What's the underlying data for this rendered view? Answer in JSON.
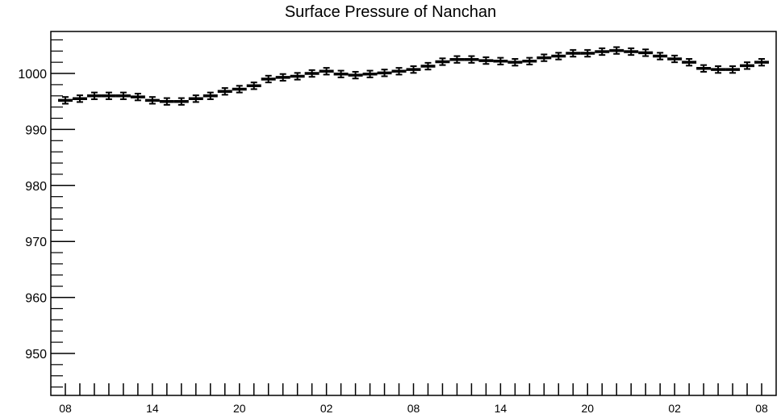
{
  "chart_data": {
    "type": "scatter",
    "title": "Surface Pressure of Nanchan",
    "xlabel": "",
    "ylabel": "",
    "x_tick_labels": [
      "08",
      "14",
      "20",
      "02",
      "08",
      "14",
      "20",
      "02",
      "08"
    ],
    "x_tick_hours": [
      0,
      6,
      12,
      18,
      24,
      30,
      36,
      42,
      48
    ],
    "xlim": [
      -1,
      49
    ],
    "ylim": [
      942.5,
      1007.5
    ],
    "y_ticks": [
      950,
      960,
      970,
      980,
      990,
      1000
    ],
    "grid": false,
    "series": [
      {
        "x": [
          0,
          1,
          2,
          3,
          4,
          5,
          6,
          7,
          8,
          9,
          10,
          11,
          12,
          13,
          14,
          15,
          16,
          17,
          18,
          19,
          20,
          21,
          22,
          23,
          24,
          25,
          26,
          27,
          28,
          29,
          30,
          31,
          32,
          33,
          34,
          35,
          36,
          37,
          38,
          39,
          40,
          41,
          42,
          43,
          44,
          45,
          46,
          47,
          48
        ],
        "y": [
          995.2,
          995.5,
          996.0,
          996.0,
          996.0,
          995.8,
          995.2,
          995.0,
          995.0,
          995.5,
          996.0,
          996.8,
          997.2,
          997.8,
          999.0,
          999.3,
          999.5,
          1000.0,
          1000.4,
          999.9,
          999.7,
          999.9,
          1000.1,
          1000.4,
          1000.7,
          1001.3,
          1002.1,
          1002.5,
          1002.5,
          1002.3,
          1002.2,
          1002.0,
          1002.2,
          1002.8,
          1003.1,
          1003.6,
          1003.6,
          1003.9,
          1004.1,
          1003.9,
          1003.7,
          1003.1,
          1002.6,
          1002.0,
          1000.9,
          1000.7,
          1000.7,
          1001.4,
          1002.0
        ],
        "err": [
          0.6,
          0.6,
          0.6,
          0.6,
          0.6,
          0.6,
          0.6,
          0.6,
          0.6,
          0.6,
          0.6,
          0.6,
          0.6,
          0.6,
          0.6,
          0.6,
          0.6,
          0.6,
          0.6,
          0.6,
          0.6,
          0.6,
          0.6,
          0.6,
          0.6,
          0.6,
          0.6,
          0.6,
          0.6,
          0.6,
          0.6,
          0.6,
          0.6,
          0.6,
          0.6,
          0.6,
          0.6,
          0.6,
          0.6,
          0.6,
          0.6,
          0.6,
          0.6,
          0.6,
          0.6,
          0.6,
          0.6,
          0.6,
          0.6
        ]
      }
    ]
  }
}
